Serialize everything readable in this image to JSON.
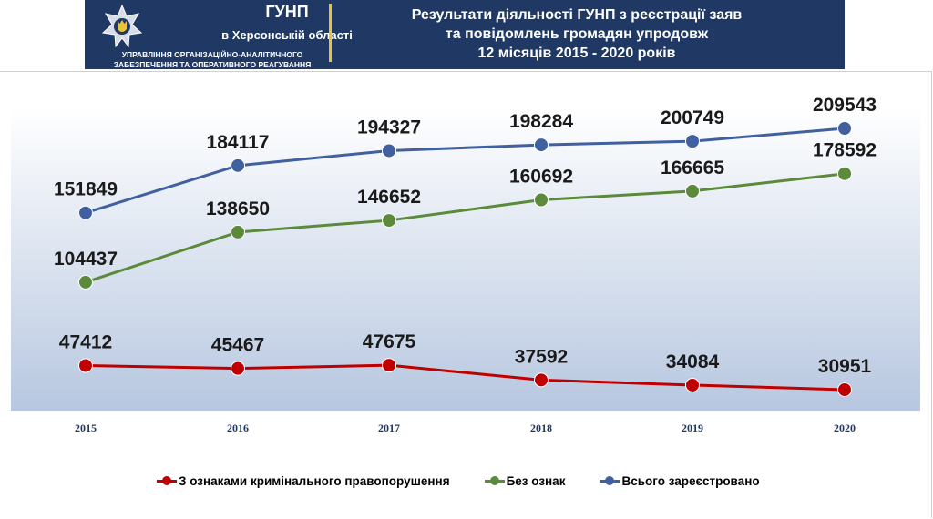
{
  "header": {
    "org_name": "ГУНП",
    "org_region": "в Херсонській області",
    "org_dept_line1": "УПРАВЛІННЯ ОРГАНІЗАЦІЙНО-АНАЛІТИЧНОГО",
    "org_dept_line2": "ЗАБЕЗПЕЧЕННЯ ТА ОПЕРАТИВНОГО РЕАГУВАННЯ",
    "title_line1": "Результати діяльності ГУНП з реєстрації заяв",
    "title_line2": "та повідомлень громадян упродовж",
    "title_line3": "12 місяців 2015 - 2020 років",
    "background_color": "#1f3864",
    "divider_color": "#e8c33b"
  },
  "chart_data": {
    "type": "line",
    "categories": [
      "2015",
      "2016",
      "2017",
      "2018",
      "2019",
      "2020"
    ],
    "series": [
      {
        "name": "Всього зареєстровано",
        "color": "#4060a0",
        "values": [
          151849,
          184117,
          194327,
          198284,
          200749,
          209543
        ]
      },
      {
        "name": "Без ознак",
        "color": "#5a8a3a",
        "values": [
          104437,
          138650,
          146652,
          160692,
          166665,
          178592
        ]
      },
      {
        "name": "З ознаками кримінального правопорушення",
        "color": "#c00000",
        "values": [
          47412,
          45467,
          47675,
          37592,
          34084,
          30951
        ]
      }
    ],
    "legend_order": [
      "З ознаками кримінального правопорушення",
      "Без ознак",
      "Всього зареєстровано"
    ],
    "legend_position": "bottom",
    "data_labels": true,
    "grid": false,
    "axis_label_color": "#1f3864"
  }
}
